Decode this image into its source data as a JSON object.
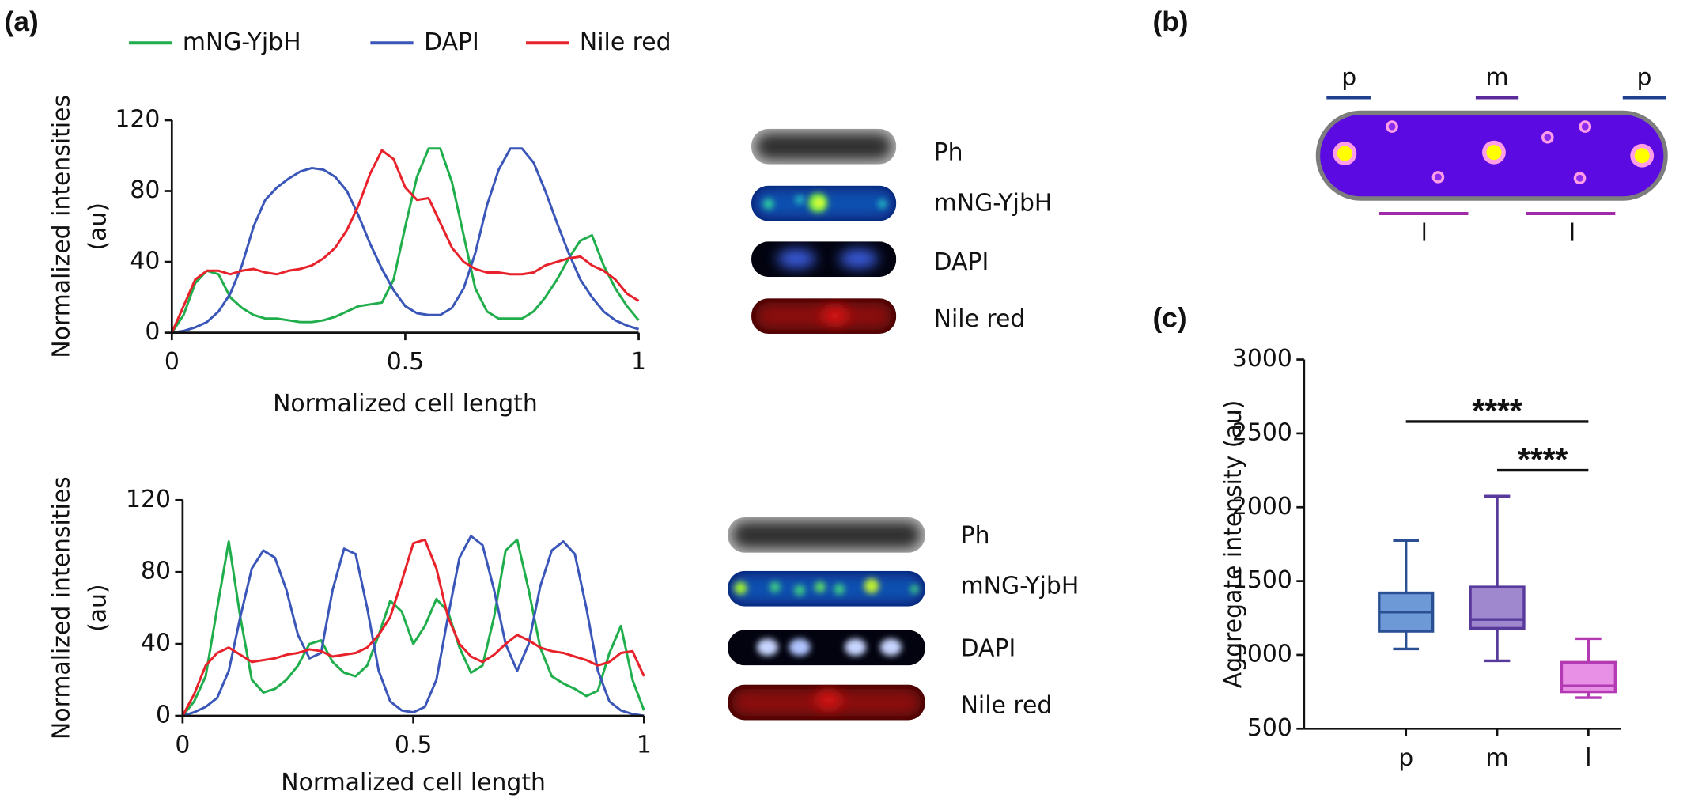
{
  "panel_labels": [
    "(a)",
    "(b)",
    "(c)"
  ],
  "micrographs": [
    {
      "labels": [
        "Ph",
        "mNG-YjbH",
        "DAPI",
        "Nile red"
      ]
    },
    {
      "labels": [
        "Ph",
        "mNG-YjbH",
        "DAPI",
        "Nile red"
      ]
    }
  ],
  "diagram": {
    "top_labels": [
      "p",
      "m",
      "p"
    ],
    "bottom_labels": [
      "l",
      "l"
    ]
  },
  "chart_data": [
    {
      "type": "line",
      "xlabel": "Normalized cell length",
      "ylabel": [
        "Normalized intensities",
        "(au)"
      ],
      "x": [
        0,
        0.025,
        0.05,
        0.075,
        0.1,
        0.125,
        0.15,
        0.175,
        0.2,
        0.225,
        0.25,
        0.275,
        0.3,
        0.325,
        0.35,
        0.375,
        0.4,
        0.425,
        0.45,
        0.475,
        0.5,
        0.525,
        0.55,
        0.575,
        0.6,
        0.625,
        0.65,
        0.675,
        0.7,
        0.725,
        0.75,
        0.775,
        0.8,
        0.825,
        0.85,
        0.875,
        0.9,
        0.925,
        0.95,
        0.975,
        1
      ],
      "xlim": [
        0,
        1
      ],
      "xticks": [
        0,
        0.5,
        1
      ],
      "ylim": [
        0,
        120
      ],
      "yticks": [
        0,
        40,
        80,
        120
      ],
      "series": [
        {
          "name": "mNG-YjbH",
          "color": "#1fae4b",
          "values": [
            0,
            10,
            28,
            35,
            33,
            20,
            14,
            10,
            8,
            8,
            7,
            6,
            6,
            7,
            9,
            12,
            15,
            16,
            17,
            30,
            60,
            88,
            104,
            104,
            85,
            55,
            25,
            12,
            8,
            8,
            8,
            12,
            20,
            30,
            42,
            52,
            55,
            38,
            25,
            15,
            7
          ]
        },
        {
          "name": "DAPI",
          "color": "#3a56b8",
          "values": [
            0,
            1,
            3,
            6,
            12,
            22,
            38,
            60,
            75,
            82,
            87,
            91,
            93,
            92,
            88,
            80,
            66,
            50,
            36,
            24,
            15,
            11,
            10,
            10,
            14,
            25,
            45,
            72,
            92,
            104,
            104,
            96,
            80,
            62,
            45,
            30,
            20,
            12,
            7,
            4,
            2
          ]
        },
        {
          "name": "Nile red",
          "color": "#e8222a",
          "values": [
            0,
            15,
            30,
            35,
            35,
            33,
            35,
            36,
            34,
            33,
            35,
            36,
            38,
            42,
            48,
            58,
            72,
            90,
            103,
            98,
            82,
            75,
            76,
            62,
            48,
            40,
            36,
            34,
            34,
            33,
            33,
            34,
            38,
            40,
            42,
            43,
            38,
            35,
            30,
            22,
            18
          ]
        }
      ]
    },
    {
      "type": "line",
      "xlabel": "Normalized cell length",
      "ylabel": [
        "Normalized intensities",
        "(au)"
      ],
      "x": [
        0,
        0.025,
        0.05,
        0.075,
        0.1,
        0.125,
        0.15,
        0.175,
        0.2,
        0.225,
        0.25,
        0.275,
        0.3,
        0.325,
        0.35,
        0.375,
        0.4,
        0.425,
        0.45,
        0.475,
        0.5,
        0.525,
        0.55,
        0.575,
        0.6,
        0.625,
        0.65,
        0.675,
        0.7,
        0.725,
        0.75,
        0.775,
        0.8,
        0.825,
        0.85,
        0.875,
        0.9,
        0.925,
        0.95,
        0.975,
        1
      ],
      "xlim": [
        0,
        1
      ],
      "xticks": [
        0,
        0.5,
        1
      ],
      "ylim": [
        0,
        120
      ],
      "yticks": [
        0,
        40,
        80,
        120
      ],
      "series": [
        {
          "color": "#1fae4b",
          "values": [
            0,
            8,
            22,
            60,
            97,
            55,
            20,
            13,
            15,
            20,
            28,
            40,
            42,
            30,
            24,
            22,
            28,
            45,
            64,
            58,
            40,
            50,
            65,
            58,
            38,
            24,
            28,
            55,
            92,
            98,
            70,
            38,
            22,
            18,
            15,
            11,
            14,
            35,
            50,
            20,
            3
          ]
        },
        {
          "color": "#3a56b8",
          "values": [
            0,
            2,
            5,
            10,
            25,
            55,
            82,
            92,
            88,
            70,
            45,
            32,
            35,
            70,
            93,
            90,
            60,
            25,
            8,
            3,
            2,
            5,
            20,
            55,
            88,
            100,
            95,
            70,
            40,
            25,
            40,
            72,
            92,
            97,
            90,
            60,
            25,
            8,
            3,
            1,
            0
          ]
        },
        {
          "color": "#e8222a",
          "values": [
            0,
            12,
            28,
            35,
            38,
            34,
            30,
            31,
            32,
            34,
            35,
            37,
            36,
            33,
            34,
            35,
            38,
            45,
            55,
            75,
            96,
            98,
            82,
            55,
            40,
            33,
            30,
            34,
            40,
            45,
            42,
            38,
            36,
            35,
            33,
            31,
            28,
            30,
            35,
            36,
            22
          ]
        }
      ]
    },
    {
      "type": "box",
      "ylabel": "Aggregate intensity (au)",
      "categories": [
        "p",
        "m",
        "l"
      ],
      "ylim": [
        500,
        3000
      ],
      "yticks": [
        500,
        1000,
        1500,
        2000,
        2500,
        3000
      ],
      "boxes": [
        {
          "min": 1040,
          "q1": 1160,
          "median": 1290,
          "q3": 1420,
          "max": 1775,
          "fill": "#6d9ad6",
          "stroke": "#2a4f92"
        },
        {
          "min": 960,
          "q1": 1180,
          "median": 1240,
          "q3": 1460,
          "max": 2075,
          "fill": "#a088cf",
          "stroke": "#583a9c"
        },
        {
          "min": 710,
          "q1": 750,
          "median": 790,
          "q3": 950,
          "max": 1110,
          "fill": "#e890e6",
          "stroke": "#b33ab2"
        }
      ],
      "annotations": [
        {
          "text": "****",
          "from": "p",
          "to": "l",
          "y": 2580
        },
        {
          "text": "****",
          "from": "m",
          "to": "l",
          "y": 2250
        }
      ]
    }
  ]
}
